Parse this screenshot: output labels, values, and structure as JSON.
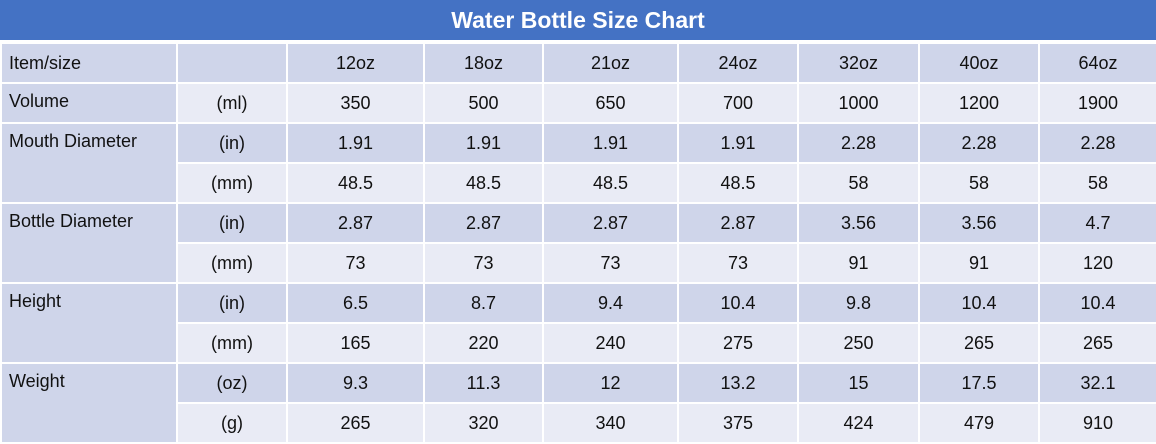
{
  "title": "Water Bottle Size Chart",
  "header": {
    "label": "Item/size",
    "unit": "",
    "sizes": [
      "12oz",
      "18oz",
      "21oz",
      "24oz",
      "32oz",
      "40oz",
      "64oz"
    ]
  },
  "rows": [
    {
      "label": "Volume",
      "unit": "(ml)",
      "values": [
        "350",
        "500",
        "650",
        "700",
        "1000",
        "1200",
        "1900"
      ]
    },
    {
      "label": "Mouth Diameter",
      "unit": "(in)",
      "values": [
        "1.91",
        "1.91",
        "1.91",
        "1.91",
        "2.28",
        "2.28",
        "2.28"
      ]
    },
    {
      "label": "",
      "unit": "(mm)",
      "values": [
        "48.5",
        "48.5",
        "48.5",
        "48.5",
        "58",
        "58",
        "58"
      ]
    },
    {
      "label": "Bottle Diameter",
      "unit": "(in)",
      "values": [
        "2.87",
        "2.87",
        "2.87",
        "2.87",
        "3.56",
        "3.56",
        "4.7"
      ]
    },
    {
      "label": "",
      "unit": "(mm)",
      "values": [
        "73",
        "73",
        "73",
        "73",
        "91",
        "91",
        "120"
      ]
    },
    {
      "label": "Height",
      "unit": "(in)",
      "values": [
        "6.5",
        "8.7",
        "9.4",
        "10.4",
        "9.8",
        "10.4",
        "10.4"
      ]
    },
    {
      "label": "",
      "unit": "(mm)",
      "values": [
        "165",
        "220",
        "240",
        "275",
        "250",
        "265",
        "265"
      ]
    },
    {
      "label": "Weight",
      "unit": "(oz)",
      "values": [
        "9.3",
        "11.3",
        "12",
        "13.2",
        "15",
        "17.5",
        "32.1"
      ]
    },
    {
      "label": "",
      "unit": "(g)",
      "values": [
        "265",
        "320",
        "340",
        "375",
        "424",
        "479",
        "910"
      ]
    }
  ],
  "colors": {
    "title_bg": "#4472c4",
    "row_dark": "#cfd5ea",
    "row_light": "#e9ebf5"
  }
}
